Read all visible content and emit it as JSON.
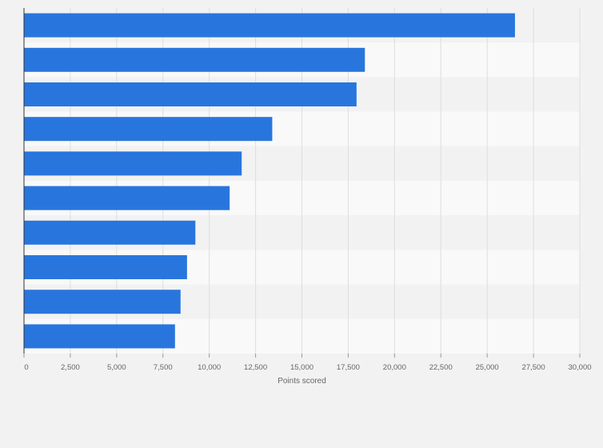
{
  "chart_data": {
    "type": "bar",
    "orientation": "horizontal",
    "values": [
      26500,
      18400,
      17950,
      13400,
      11750,
      11100,
      9250,
      8800,
      8450,
      8150
    ],
    "xlabel": "Points scored",
    "xlim": [
      0,
      30000
    ],
    "xticks": [
      0,
      2500,
      5000,
      7500,
      10000,
      12500,
      15000,
      17500,
      20000,
      22500,
      25000,
      27500,
      30000
    ],
    "xtick_labels": [
      "0",
      "2,500",
      "5,000",
      "7,500",
      "10,000",
      "12,500",
      "15,000",
      "17,500",
      "20,000",
      "22,500",
      "25,000",
      "27,500",
      "30,000"
    ],
    "grid": true,
    "bar_color": "#2876dd",
    "row_band_colors": [
      "#f2f2f2",
      "#f9f9f9"
    ],
    "gridline_color": "#dedede",
    "axis_color": "#333333"
  }
}
